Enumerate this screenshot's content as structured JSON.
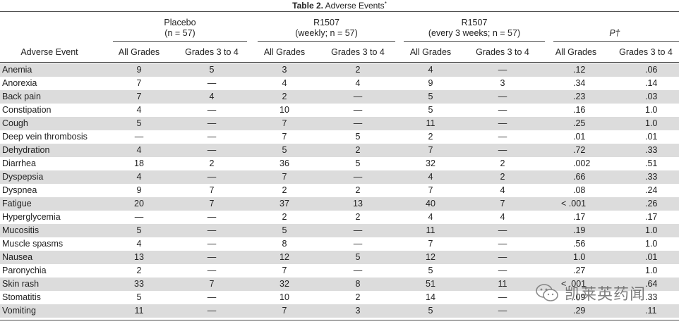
{
  "caption": {
    "label": "Table 2.",
    "title": "Adverse Events",
    "note_mark": "*"
  },
  "groups": [
    {
      "line1": "Placebo",
      "line2": "(n = 57)"
    },
    {
      "line1": "R1507",
      "line2": "(weekly; n = 57)"
    },
    {
      "line1": "R1507",
      "line2": "(every 3 weeks; n = 57)"
    },
    {
      "line1": "P†",
      "line2": ""
    }
  ],
  "first_col_header": "Adverse Event",
  "sub_headers": [
    "All Grades",
    "Grades 3 to 4",
    "All Grades",
    "Grades 3 to 4",
    "All Grades",
    "Grades 3 to 4",
    "All Grades",
    "Grades 3 to 4"
  ],
  "rows": [
    {
      "event": "Anemia",
      "values": [
        "9",
        "5",
        "3",
        "2",
        "4",
        "—",
        ".12",
        ".06"
      ]
    },
    {
      "event": "Anorexia",
      "values": [
        "7",
        "—",
        "4",
        "4",
        "9",
        "3",
        ".34",
        ".14"
      ]
    },
    {
      "event": "Back pain",
      "values": [
        "7",
        "4",
        "2",
        "—",
        "5",
        "—",
        ".23",
        ".03"
      ]
    },
    {
      "event": "Constipation",
      "values": [
        "4",
        "—",
        "10",
        "—",
        "5",
        "—",
        ".16",
        "1.0"
      ]
    },
    {
      "event": "Cough",
      "values": [
        "5",
        "—",
        "7",
        "—",
        "11",
        "—",
        ".25",
        "1.0"
      ]
    },
    {
      "event": "Deep vein thrombosis",
      "values": [
        "—",
        "—",
        "7",
        "5",
        "2",
        "—",
        ".01",
        ".01"
      ]
    },
    {
      "event": "Dehydration",
      "values": [
        "4",
        "—",
        "5",
        "2",
        "7",
        "—",
        ".72",
        ".33"
      ]
    },
    {
      "event": "Diarrhea",
      "values": [
        "18",
        "2",
        "36",
        "5",
        "32",
        "2",
        ".002",
        ".51"
      ]
    },
    {
      "event": "Dyspepsia",
      "values": [
        "4",
        "—",
        "7",
        "—",
        "4",
        "2",
        ".66",
        ".33"
      ]
    },
    {
      "event": "Dyspnea",
      "values": [
        "9",
        "7",
        "2",
        "2",
        "7",
        "4",
        ".08",
        ".24"
      ]
    },
    {
      "event": "Fatigue",
      "values": [
        "20",
        "7",
        "37",
        "13",
        "40",
        "7",
        "< .001",
        ".26"
      ]
    },
    {
      "event": "Hyperglycemia",
      "values": [
        "—",
        "—",
        "2",
        "2",
        "4",
        "4",
        ".17",
        ".17"
      ]
    },
    {
      "event": "Mucositis",
      "values": [
        "5",
        "—",
        "5",
        "—",
        "11",
        "—",
        ".19",
        "1.0"
      ]
    },
    {
      "event": "Muscle spasms",
      "values": [
        "4",
        "—",
        "8",
        "—",
        "7",
        "—",
        ".56",
        "1.0"
      ]
    },
    {
      "event": "Nausea",
      "values": [
        "13",
        "—",
        "12",
        "5",
        "12",
        "—",
        "1.0",
        ".01"
      ]
    },
    {
      "event": "Paronychia",
      "values": [
        "2",
        "—",
        "7",
        "—",
        "5",
        "—",
        ".27",
        "1.0"
      ]
    },
    {
      "event": "Skin rash",
      "values": [
        "33",
        "7",
        "32",
        "8",
        "51",
        "11",
        "< .001",
        ".64"
      ]
    },
    {
      "event": "Stomatitis",
      "values": [
        "5",
        "—",
        "10",
        "2",
        "14",
        "—",
        ".09",
        ".33"
      ]
    },
    {
      "event": "Vomiting",
      "values": [
        "11",
        "—",
        "7",
        "3",
        "5",
        "—",
        ".29",
        ".11"
      ]
    }
  ],
  "watermark": {
    "text": "凯莱英药闻",
    "icon": "wechat-icon"
  }
}
